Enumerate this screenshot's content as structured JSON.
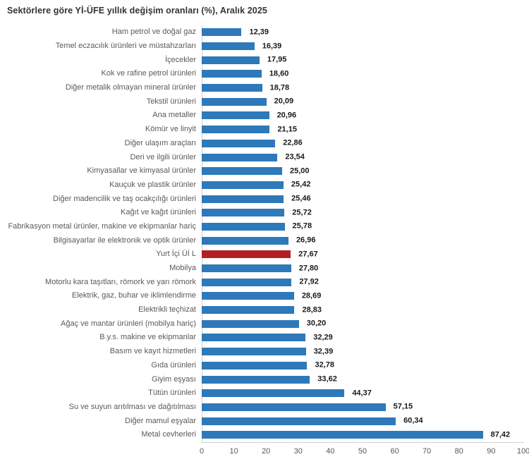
{
  "colors": {
    "bar": "#2e79b9",
    "highlight": "#b22026",
    "axis_line": "#d0d0d0",
    "category_text": "#595959",
    "value_text": "#1a1a1a"
  },
  "chart_data": {
    "type": "bar",
    "orientation": "horizontal",
    "title": "Sektörlere göre Yİ-ÜFE yıllık değişim oranları (%), Aralık 2025",
    "categories": [
      "Ham petrol ve doğal gaz",
      "Temel eczacılık ürünleri ve müstahzarları",
      "İçecekler",
      "Kok ve rafine petrol ürünleri",
      "Diğer metalik olmayan mineral ürünler",
      "Tekstil ürünleri",
      "Ana metaller",
      "Kömür ve linyit",
      "Diğer ulaşım araçları",
      "Deri ve ilgili ürünler",
      "Kimyasallar ve kimyasal ürünler",
      "Kauçuk ve plastik ürünler",
      "Diğer madencilik ve taş ocakçılığı ürünleri",
      "Kağıt ve kağıt ürünleri",
      "Fabrikasyon metal ürünler, makine ve ekipmanlar hariç",
      "Bilgisayarlar ile elektronik ve optik ürünler",
      "Yurt İçi Üİ L",
      "Mobilya",
      "Motorlu kara taşıtları, römork ve yarı römork",
      "Elektrik, gaz, buhar ve iklimlendirme",
      "Elektrikli teçhizat",
      "Ağaç ve mantar ürünleri (mobilya hariç)",
      "B.y.s. makine ve ekipmanlar",
      "Basım ve kayıt hizmetleri",
      "Gıda ürünleri",
      "Giyim eşyası",
      "Tütün ürünleri",
      "Su ve suyun arıtılması ve dağıtılması",
      "Diğer mamul eşyalar",
      "Metal cevherleri"
    ],
    "values": [
      12.39,
      16.39,
      17.95,
      18.6,
      18.78,
      20.09,
      20.96,
      21.15,
      22.86,
      23.54,
      25.0,
      25.42,
      25.46,
      25.72,
      25.78,
      26.96,
      27.67,
      27.8,
      27.92,
      28.69,
      28.83,
      30.2,
      32.29,
      32.39,
      32.78,
      33.62,
      44.37,
      57.15,
      60.34,
      87.42
    ],
    "value_labels": [
      "12,39",
      "16,39",
      "17,95",
      "18,60",
      "18,78",
      "20,09",
      "20,96",
      "21,15",
      "22,86",
      "23,54",
      "25,00",
      "25,42",
      "25,46",
      "25,72",
      "25,78",
      "26,96",
      "27,67",
      "27,80",
      "27,92",
      "28,69",
      "28,83",
      "30,20",
      "32,29",
      "32,39",
      "32,78",
      "33,62",
      "44,37",
      "57,15",
      "60,34",
      "87,42"
    ],
    "highlight": {
      "index": 16,
      "category": "Yurt İçi Üİ L",
      "color": "#b22026"
    },
    "xlabel": "",
    "ylabel": "",
    "xlim": [
      0,
      100
    ],
    "x_ticks": [
      "0",
      "10",
      "20",
      "30",
      "40",
      "50",
      "60",
      "70",
      "80",
      "90",
      "100"
    ],
    "grid": false,
    "legend": false,
    "data_labels": true
  }
}
